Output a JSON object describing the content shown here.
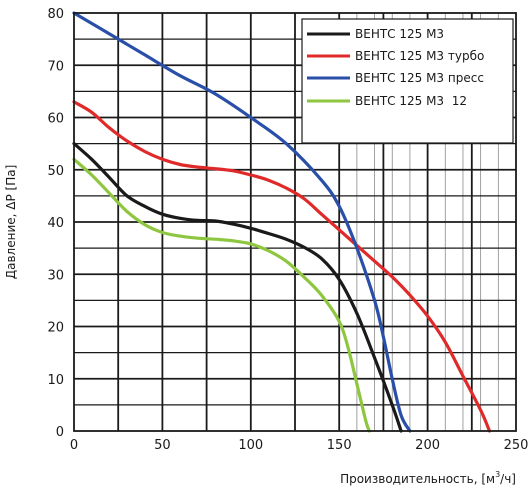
{
  "chart_data": {
    "type": "line",
    "xlabel": "Производительность, [м",
    "xlabel_sup": "3",
    "xlabel_tail": "/ч]",
    "ylabel": "Давление, ΔP [Па]",
    "xlim": [
      0,
      250
    ],
    "ylim": [
      0,
      80
    ],
    "x_ticks": [
      0,
      50,
      100,
      150,
      200,
      250
    ],
    "y_ticks": [
      0,
      10,
      20,
      30,
      40,
      50,
      60,
      70,
      80
    ],
    "grid": true,
    "legend": "top-right",
    "series": [
      {
        "name": "ВЕНТС 125 М3",
        "color": "#1a1a1a",
        "x": [
          0,
          10,
          20,
          30,
          40,
          50,
          60,
          70,
          80,
          90,
          100,
          110,
          120,
          130,
          140,
          150,
          160,
          170,
          180,
          185
        ],
        "y": [
          55,
          52,
          48.5,
          45,
          43,
          41.5,
          40.7,
          40.3,
          40.2,
          39.6,
          38.8,
          37.8,
          36.7,
          35.2,
          33,
          29,
          22.5,
          14,
          5,
          0
        ]
      },
      {
        "name": "ВЕНТС 125 М3 турбо",
        "color": "#e02a2a",
        "x": [
          0,
          10,
          20,
          30,
          40,
          50,
          60,
          70,
          80,
          90,
          100,
          110,
          120,
          130,
          140,
          150,
          160,
          170,
          180,
          190,
          200,
          210,
          220,
          230,
          235
        ],
        "y": [
          63,
          61,
          58,
          55.5,
          53.5,
          52,
          51,
          50.5,
          50.2,
          49.8,
          49,
          48,
          46.5,
          44.5,
          41.5,
          38.5,
          35.5,
          32.5,
          29.5,
          26,
          22,
          17,
          10.5,
          4,
          0
        ]
      },
      {
        "name": "ВЕНТС 125 М3 пресс",
        "color": "#2a4fa8",
        "x": [
          0,
          20,
          40,
          60,
          80,
          100,
          120,
          140,
          150,
          160,
          170,
          175,
          180,
          185,
          190
        ],
        "y": [
          80,
          76,
          72,
          68,
          64.5,
          60,
          55,
          48,
          43,
          35,
          25,
          18,
          10,
          3,
          0
        ]
      },
      {
        "name": "ВЕНТС 125 М3  12",
        "color": "#8ec63f",
        "x": [
          0,
          10,
          20,
          30,
          40,
          50,
          60,
          70,
          80,
          90,
          100,
          110,
          120,
          130,
          140,
          150,
          155,
          160,
          165,
          167
        ],
        "y": [
          52,
          49,
          45.5,
          42,
          39.5,
          38,
          37.3,
          36.9,
          36.7,
          36.4,
          35.8,
          34.5,
          32.5,
          29.5,
          26,
          21,
          16,
          9,
          2,
          0
        ]
      }
    ]
  }
}
